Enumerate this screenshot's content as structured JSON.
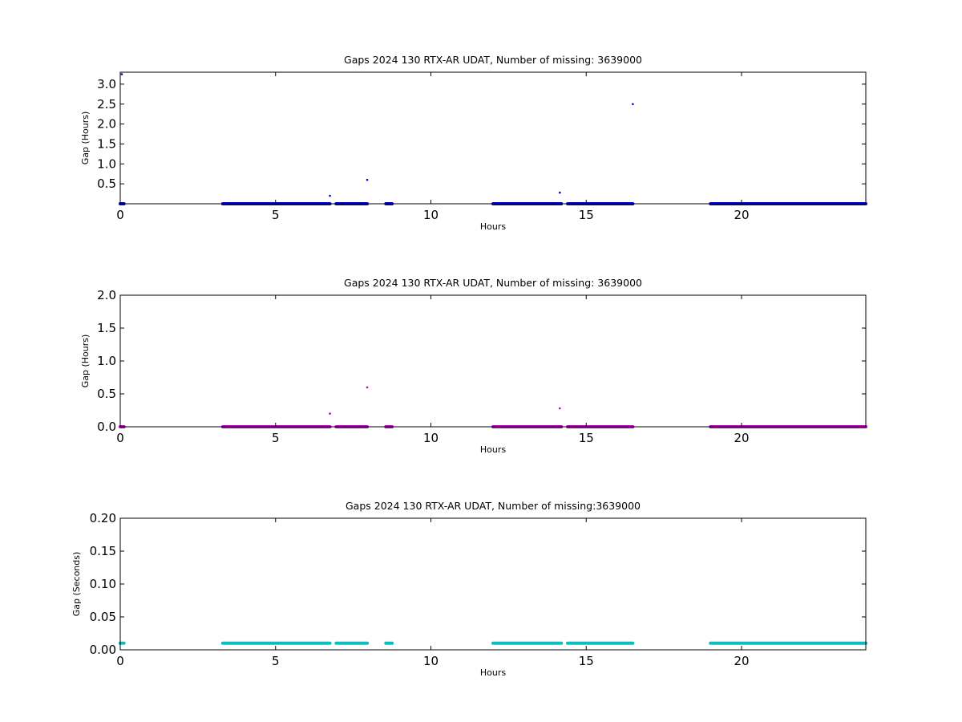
{
  "chart_data": [
    {
      "type": "scatter",
      "title": "Gaps 2024 130 RTX-AR  UDAT, Number of missing: 3639000",
      "xlabel": "Hours",
      "ylabel": "Gap (Hours)",
      "xlim": [
        0,
        24
      ],
      "ylim": [
        0,
        3.3
      ],
      "xticks": [
        "0",
        "5",
        "10",
        "15",
        "20"
      ],
      "xtick_values": [
        0,
        5,
        10,
        15,
        20
      ],
      "yticks": [
        "0.5",
        "1.0",
        "1.5",
        "2.0",
        "2.5",
        "3.0"
      ],
      "ytick_values": [
        0.5,
        1.0,
        1.5,
        2.0,
        2.5,
        3.0
      ],
      "color": "#0000cc",
      "grid": false,
      "baseline_value": 0.0,
      "baseline_segments": [
        [
          0.0,
          0.12
        ],
        [
          3.3,
          6.75
        ],
        [
          6.95,
          7.95
        ],
        [
          8.55,
          8.75
        ],
        [
          12.0,
          14.2
        ],
        [
          14.4,
          16.5
        ],
        [
          19.0,
          24.0
        ]
      ],
      "outliers": [
        {
          "x": 0.05,
          "y": 3.25
        },
        {
          "x": 6.75,
          "y": 0.2
        },
        {
          "x": 7.95,
          "y": 0.6
        },
        {
          "x": 14.15,
          "y": 0.28
        },
        {
          "x": 16.5,
          "y": 2.5
        }
      ]
    },
    {
      "type": "scatter",
      "title": "Gaps 2024 130 RTX-AR  UDAT, Number of missing: 3639000",
      "xlabel": "Hours",
      "ylabel": "Gap (Hours)",
      "xlim": [
        0,
        24
      ],
      "ylim": [
        0,
        2.0
      ],
      "xticks": [
        "0",
        "5",
        "10",
        "15",
        "20"
      ],
      "xtick_values": [
        0,
        5,
        10,
        15,
        20
      ],
      "yticks": [
        "0.0",
        "0.5",
        "1.0",
        "1.5",
        "2.0"
      ],
      "ytick_values": [
        0.0,
        0.5,
        1.0,
        1.5,
        2.0
      ],
      "color": "#bb00bb",
      "grid": false,
      "baseline_value": 0.0,
      "baseline_segments": [
        [
          0.0,
          0.12
        ],
        [
          3.3,
          6.75
        ],
        [
          6.95,
          7.95
        ],
        [
          8.55,
          8.75
        ],
        [
          12.0,
          14.2
        ],
        [
          14.4,
          16.5
        ],
        [
          19.0,
          24.0
        ]
      ],
      "outliers": [
        {
          "x": 6.75,
          "y": 0.2
        },
        {
          "x": 7.95,
          "y": 0.6
        },
        {
          "x": 14.15,
          "y": 0.28
        }
      ]
    },
    {
      "type": "scatter",
      "title": "Gaps 2024 130 RTX-AR  UDAT, Number of missing:3639000",
      "xlabel": "Hours",
      "ylabel": "Gap (Seconds)",
      "xlim": [
        0,
        24
      ],
      "ylim": [
        0,
        0.2
      ],
      "xticks": [
        "0",
        "5",
        "10",
        "15",
        "20"
      ],
      "xtick_values": [
        0,
        5,
        10,
        15,
        20
      ],
      "yticks": [
        "0.00",
        "0.05",
        "0.10",
        "0.15",
        "0.20"
      ],
      "ytick_values": [
        0.0,
        0.05,
        0.1,
        0.15,
        0.2
      ],
      "color": "#11bbbb",
      "grid": false,
      "baseline_value": 0.01,
      "baseline_segments": [
        [
          0.0,
          0.12
        ],
        [
          3.3,
          6.75
        ],
        [
          6.95,
          7.95
        ],
        [
          8.55,
          8.75
        ],
        [
          12.0,
          14.2
        ],
        [
          14.4,
          16.5
        ],
        [
          19.0,
          24.0
        ]
      ],
      "outliers": []
    }
  ]
}
